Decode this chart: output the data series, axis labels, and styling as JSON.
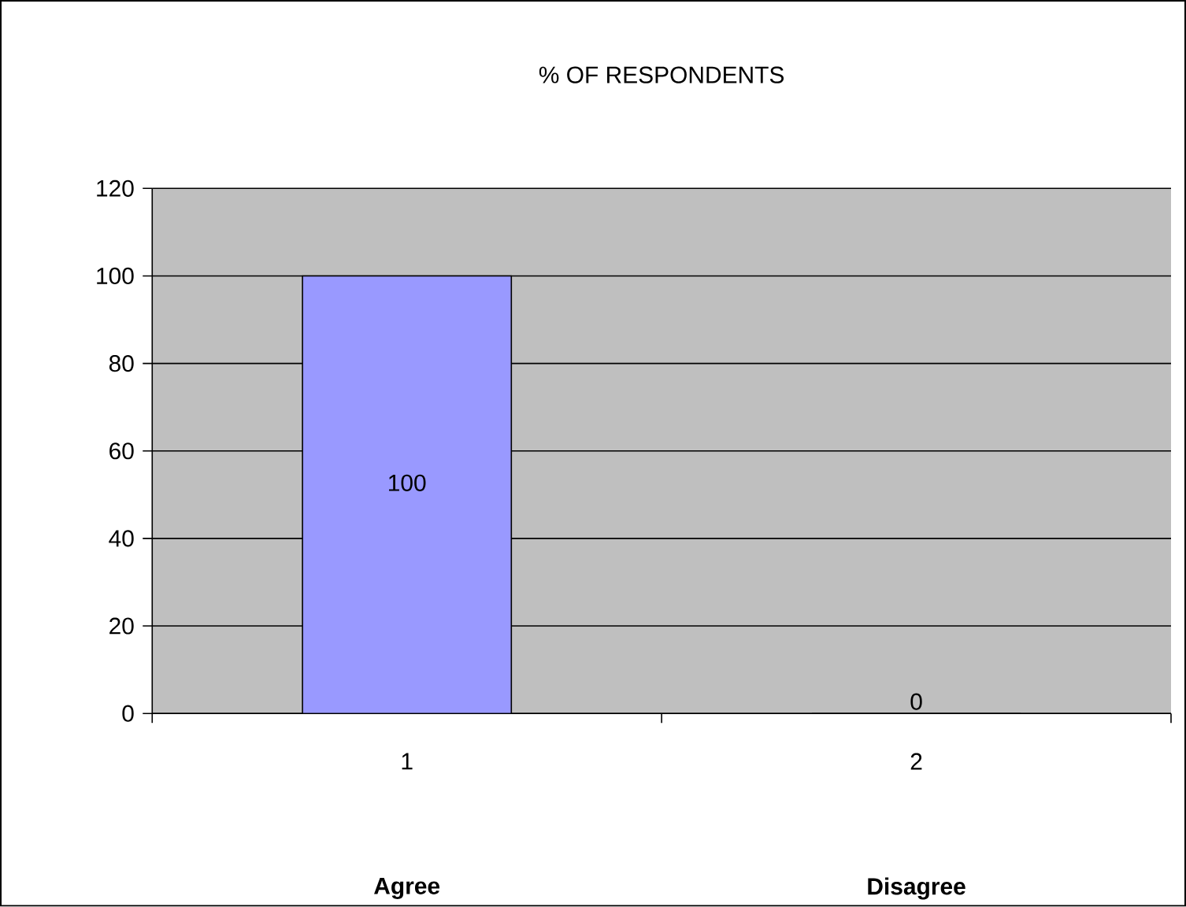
{
  "chart_data": {
    "type": "bar",
    "title": "% OF RESPONDENTS",
    "categories": [
      "1",
      "2"
    ],
    "values": [
      100,
      0
    ],
    "color": "#9999ff",
    "value_labels": [
      "100",
      "0"
    ],
    "annotations": [
      "Agree",
      "Disagree"
    ],
    "ylim": [
      0,
      120
    ],
    "yticks": [
      0,
      20,
      40,
      60,
      80,
      100,
      120
    ],
    "grid": "y"
  }
}
